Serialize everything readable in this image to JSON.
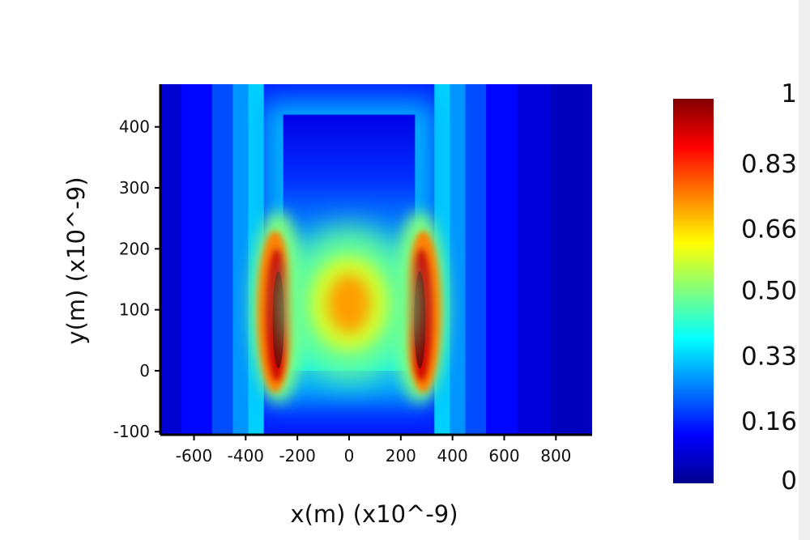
{
  "chart_data": {
    "type": "heatmap",
    "title": "",
    "xlabel": "x(m) (x10^-9)",
    "ylabel": "y(m) (x10^-9)",
    "xlim": [
      -730,
      940
    ],
    "ylim": [
      -105,
      470
    ],
    "x_ticks": [
      -600,
      -400,
      -200,
      0,
      200,
      400,
      600,
      800
    ],
    "x_tick_labels": [
      "-600",
      "-400",
      "-200",
      "0",
      "200",
      "400",
      "600",
      "800"
    ],
    "y_ticks": [
      -100,
      0,
      100,
      200,
      300,
      400
    ],
    "y_tick_labels": [
      "-100",
      "0",
      "100",
      "200",
      "300",
      "400"
    ],
    "colorscale": "jet",
    "colorbar": {
      "min": 0,
      "max": 1,
      "tick_values": [
        1,
        0.83,
        0.66,
        0.5,
        0.33,
        0.16,
        0
      ],
      "tick_labels": [
        "1",
        "0.83",
        "0.66",
        "0.50",
        "0.33",
        "0.16",
        "0"
      ]
    },
    "structure": {
      "rect_x": [
        -255,
        255
      ],
      "rect_y": [
        0,
        420
      ]
    },
    "hotspots": [
      {
        "x": -265,
        "y": 110,
        "value": 1.0
      },
      {
        "x": 265,
        "y": 110,
        "value": 1.0
      },
      {
        "x": 0,
        "y": 110,
        "value": 0.72
      }
    ],
    "background_bands": [
      {
        "x": [
          -730,
          -650
        ],
        "value": 0.08
      },
      {
        "x": [
          -650,
          -530
        ],
        "value": 0.13
      },
      {
        "x": [
          -530,
          -450
        ],
        "value": 0.2
      },
      {
        "x": [
          -450,
          -390
        ],
        "value": 0.27
      },
      {
        "x": [
          -390,
          -330
        ],
        "value": 0.33
      },
      {
        "x": [
          330,
          390
        ],
        "value": 0.33
      },
      {
        "x": [
          390,
          450
        ],
        "value": 0.27
      },
      {
        "x": [
          450,
          530
        ],
        "value": 0.2
      },
      {
        "x": [
          530,
          650
        ],
        "value": 0.13
      },
      {
        "x": [
          650,
          780
        ],
        "value": 0.09
      },
      {
        "x": [
          780,
          940
        ],
        "value": 0.06
      }
    ]
  }
}
